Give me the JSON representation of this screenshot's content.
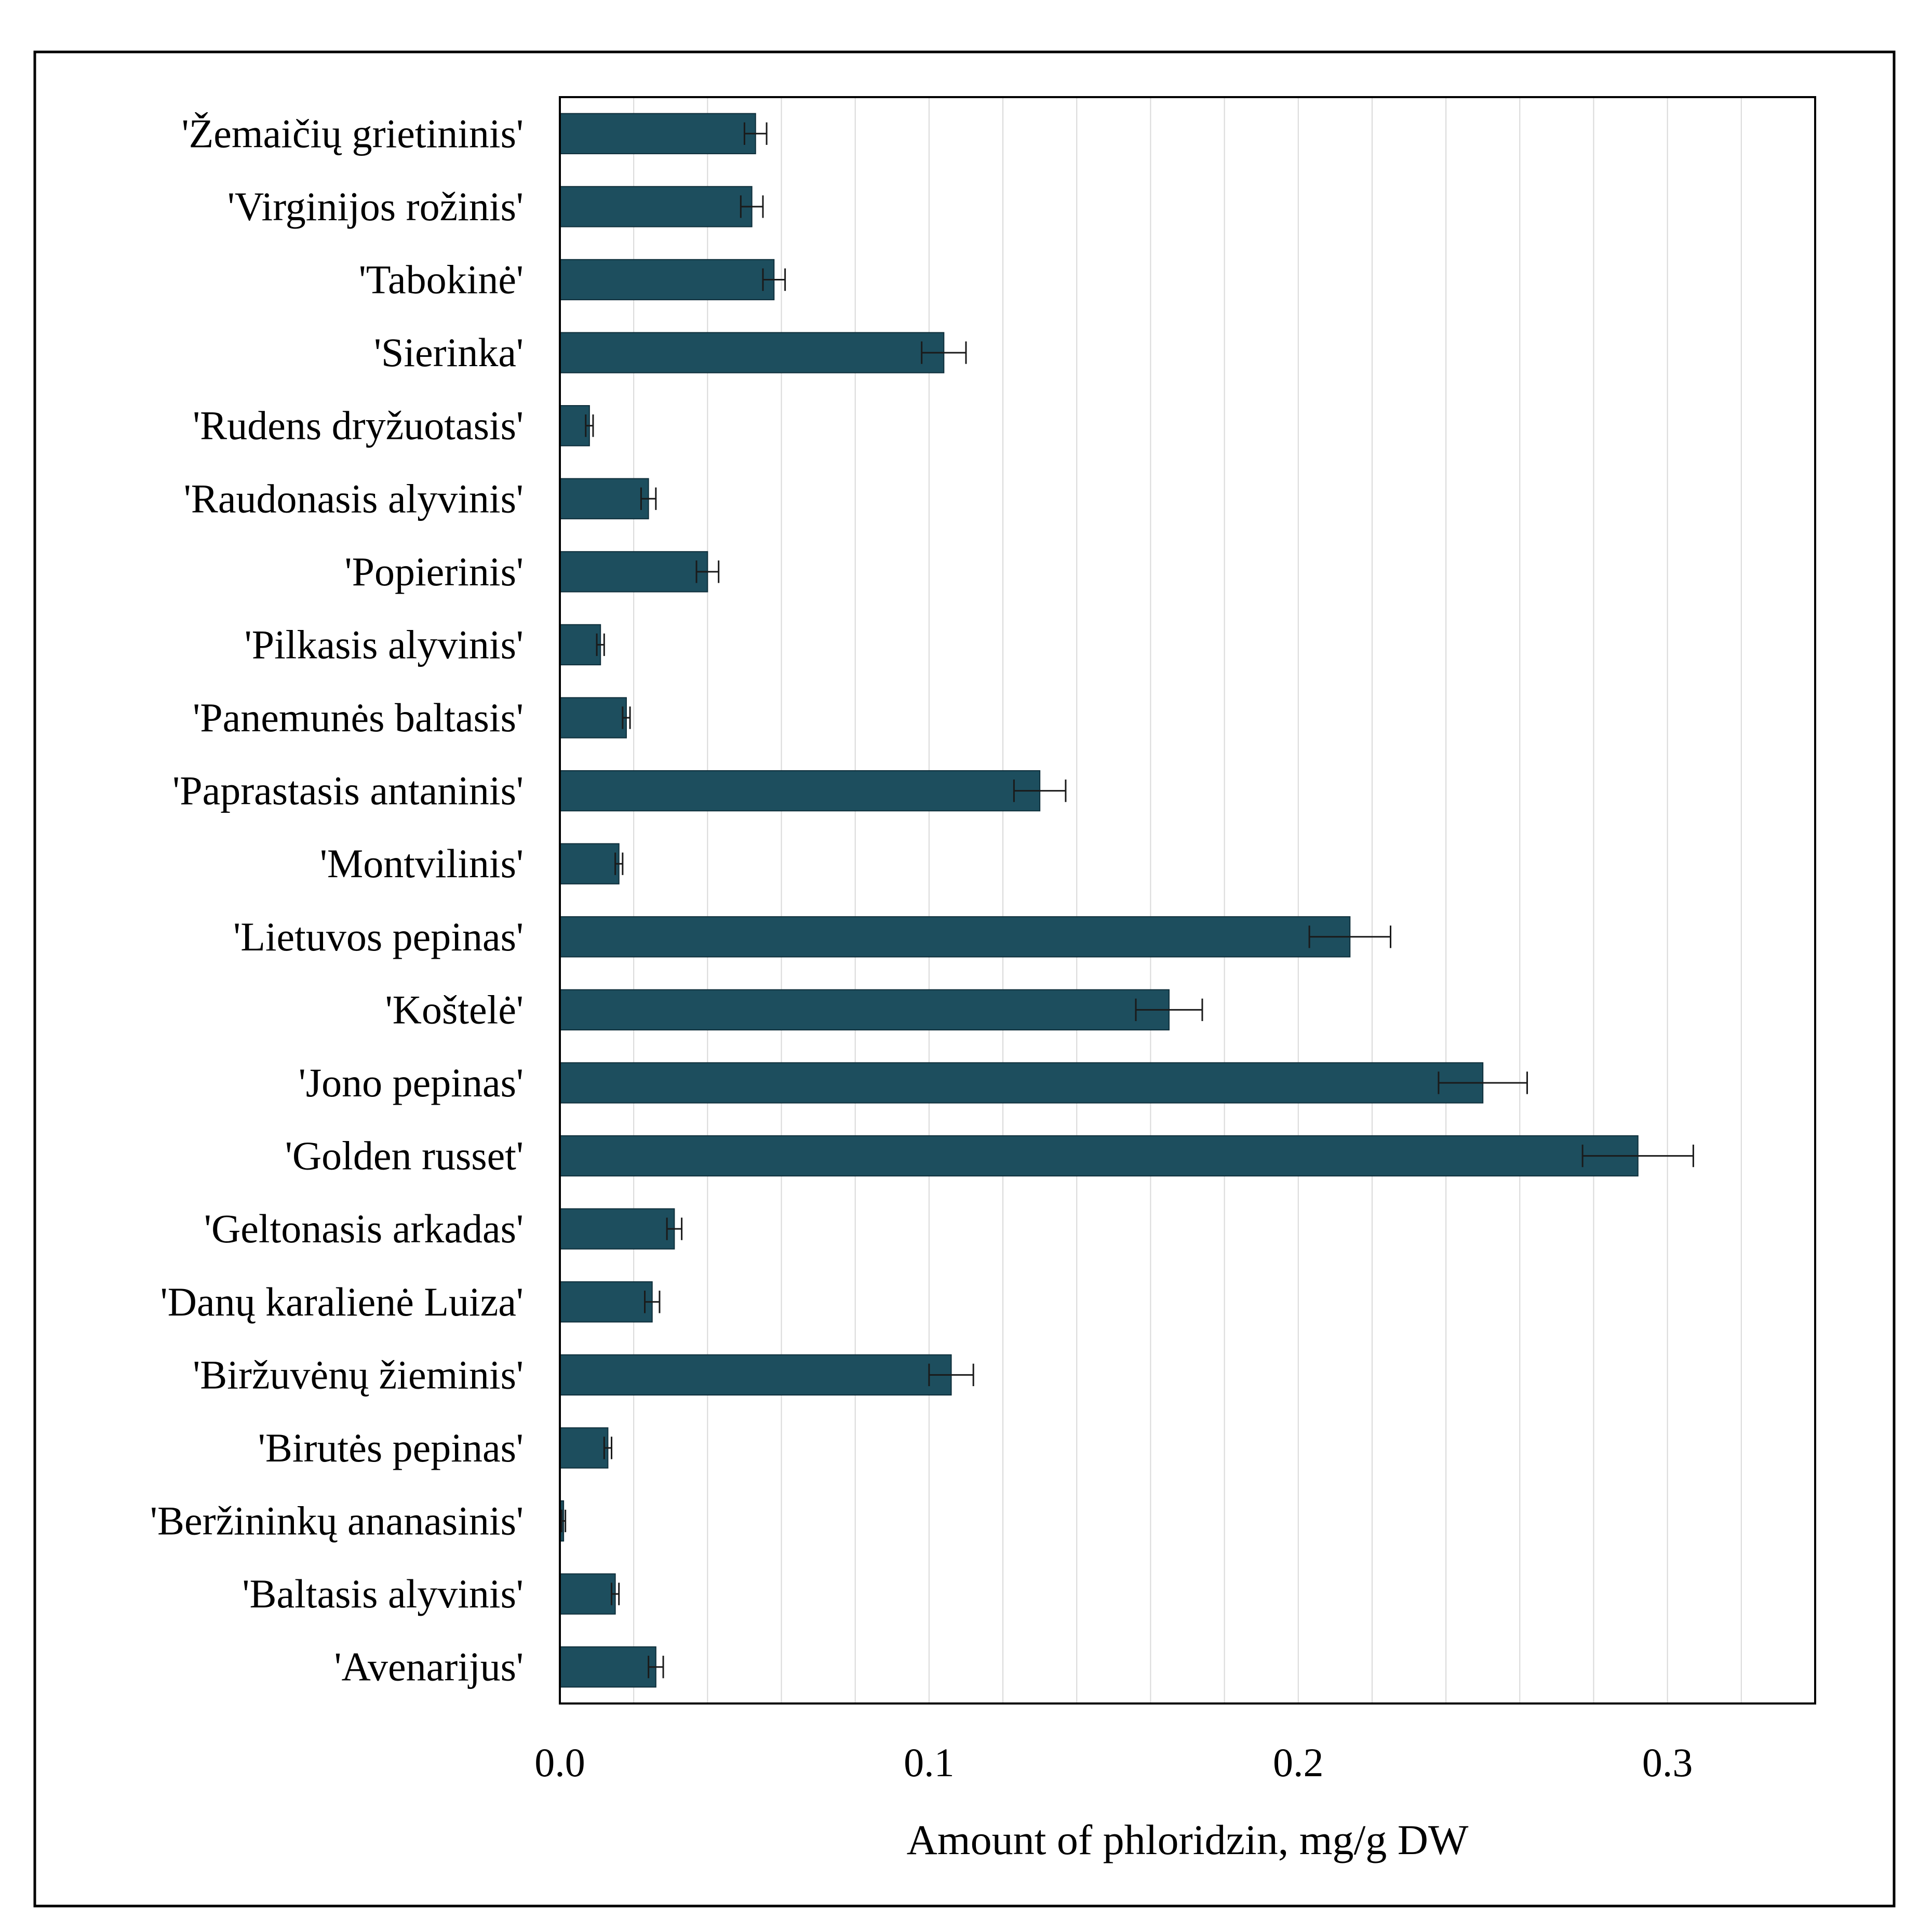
{
  "chart_data": {
    "type": "bar",
    "orientation": "horizontal",
    "xlabel": "Amount of phloridzin,  mg/g DW",
    "xlim": [
      0,
      0.34
    ],
    "x_ticks": [
      {
        "value": 0.0,
        "label": "0.0"
      },
      {
        "value": 0.1,
        "label": "0.1"
      },
      {
        "value": 0.2,
        "label": "0.2"
      },
      {
        "value": 0.3,
        "label": "0.3"
      }
    ],
    "minor_grid_step": 0.02,
    "grid": true,
    "bar_color": "#1d4e5e",
    "categories": [
      "'Žemaičių grietininis'",
      "'Virginijos rožinis'",
      "'Tabokinė'",
      "'Sierinka'",
      "'Rudens dryžuotasis'",
      "'Raudonasis alyvinis'",
      "'Popierinis'",
      "'Pilkasis alyvinis'",
      "'Panemunės baltasis'",
      "'Paprastasis antaninis'",
      "'Montvilinis'",
      "'Lietuvos pepinas'",
      "'Koštelė'",
      "'Jono pepinas'",
      "'Golden russet'",
      "'Geltonasis arkadas'",
      "'Danų karalienė Luiza'",
      "'Biržuvėnų žieminis'",
      "'Birutės pepinas'",
      "'Beržininkų ananasinis'",
      "'Baltasis alyvinis'",
      "'Avenarijus'"
    ],
    "values": [
      0.053,
      0.052,
      0.058,
      0.104,
      0.008,
      0.024,
      0.04,
      0.011,
      0.018,
      0.13,
      0.016,
      0.214,
      0.165,
      0.25,
      0.292,
      0.031,
      0.025,
      0.106,
      0.013,
      0.001,
      0.015,
      0.026
    ],
    "errors": [
      0.003,
      0.003,
      0.003,
      0.006,
      0.001,
      0.002,
      0.003,
      0.001,
      0.001,
      0.007,
      0.001,
      0.011,
      0.009,
      0.012,
      0.015,
      0.002,
      0.002,
      0.006,
      0.001,
      0.0005,
      0.001,
      0.002
    ]
  }
}
